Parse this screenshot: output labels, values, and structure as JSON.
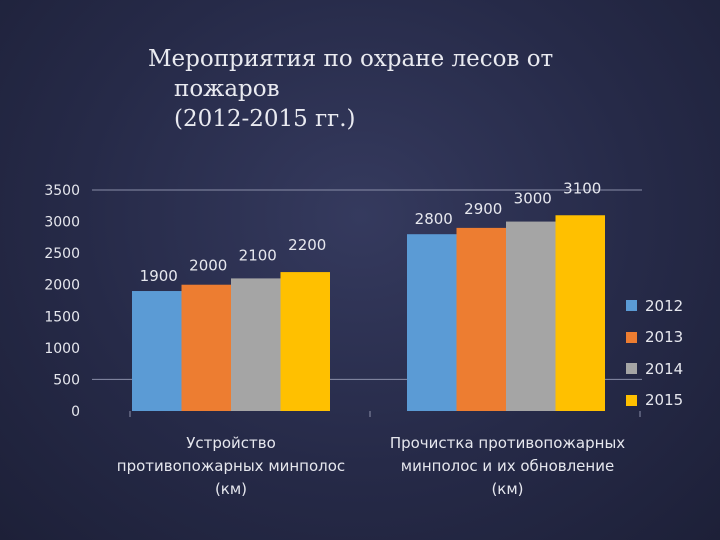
{
  "slide": {
    "title_lines": [
      "Мероприятия по охране лесов от",
      "пожаров",
      "(2012-2015 гг.)"
    ]
  },
  "chart_data": {
    "type": "bar",
    "categories": [
      "Устройство\nпротивопожарных минполос\n(км)",
      "Прочистка противопожарных\nминполос и их обновление\n(км)"
    ],
    "series": [
      {
        "name": "2012",
        "values": [
          1900,
          2800
        ],
        "color": "#5b9bd5"
      },
      {
        "name": "2013",
        "values": [
          2000,
          2900
        ],
        "color": "#ed7d31"
      },
      {
        "name": "2014",
        "values": [
          2100,
          3000
        ],
        "color": "#a5a5a5"
      },
      {
        "name": "2015",
        "values": [
          2200,
          3100
        ],
        "color": "#ffc000"
      }
    ],
    "ylim": [
      0,
      3500
    ],
    "yticks": [
      0,
      500,
      1000,
      1500,
      2000,
      2500,
      3000,
      3500
    ],
    "data_labels": true,
    "grid": true,
    "legend": "right"
  }
}
